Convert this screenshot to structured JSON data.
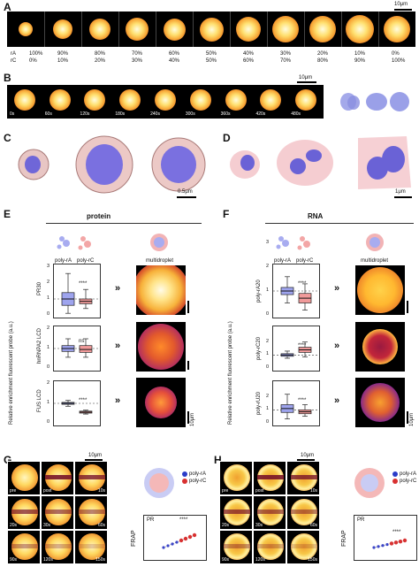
{
  "panels": {
    "A": "A",
    "B": "B",
    "C": "C",
    "D": "D",
    "E": "E",
    "F": "F",
    "G": "G",
    "H": "H"
  },
  "panelA": {
    "scale": "10μm",
    "row_labels": [
      "rA",
      "rC"
    ],
    "rA": [
      "100%",
      "90%",
      "80%",
      "70%",
      "60%",
      "50%",
      "40%",
      "30%",
      "20%",
      "10%",
      "0%"
    ],
    "rC": [
      "0%",
      "10%",
      "20%",
      "30%",
      "40%",
      "50%",
      "60%",
      "70%",
      "80%",
      "90%",
      "100%"
    ]
  },
  "panelB": {
    "scale": "10μm",
    "times": [
      "0s",
      "60s",
      "120s",
      "180s",
      "240s",
      "300s",
      "360s",
      "420s",
      "480s"
    ]
  },
  "panelC": {
    "scale": "0.5μm"
  },
  "panelD": {
    "scale": "1μm"
  },
  "panelE": {
    "group_title": "protein",
    "legend": {
      "a": "poly-rA",
      "c": "poly-rC",
      "multi": "multidroplet"
    },
    "ylabel": "Relative enrichment fluorescent probe (a.u.)",
    "rows": [
      {
        "name": "PR30",
        "sig": "****"
      },
      {
        "name": "hnRNPA2 LCD",
        "sig": "ns"
      },
      {
        "name": "FUS LCD",
        "sig": "****"
      }
    ],
    "scale": "10μm"
  },
  "panelF": {
    "group_title": "RNA",
    "legend": {
      "a": "poly-rA",
      "c": "poly-rC",
      "multi": "multidroplet"
    },
    "ylabel": "Relative enrichment fluorescent probe (a.u.)",
    "rows": [
      {
        "name": "poly-rA20",
        "sig": "****"
      },
      {
        "name": "poly-rC20",
        "sig": "****"
      },
      {
        "name": "poly-rU20",
        "sig": "****"
      }
    ],
    "scale": "10μm"
  },
  "panelG": {
    "scale": "10μm",
    "times": [
      "pre",
      "post",
      "10s",
      "20s",
      "30s",
      "60s",
      "90s",
      "120s",
      "150s"
    ],
    "legend": [
      "poly-rA",
      "poly-rC"
    ],
    "frap_label": "FRAP",
    "inset_label": "PR",
    "sig": "****"
  },
  "panelH": {
    "scale": "10μm",
    "times": [
      "pre",
      "post",
      "10s",
      "20s",
      "30s",
      "60s",
      "90s",
      "120s",
      "150s"
    ],
    "legend": [
      "poly-rA",
      "poly-rC"
    ],
    "frap_label": "FRAP",
    "inset_label": "PR",
    "sig": "****"
  },
  "boxplot_ticks": {
    "top": [
      "0",
      "1",
      "2",
      "3"
    ],
    "mid": [
      "0",
      "1",
      "2"
    ],
    "bot": [
      "0",
      "1",
      "2"
    ]
  },
  "chart_data": [
    {
      "type": "box",
      "panel": "E",
      "row": "PR30",
      "categories": [
        "poly-rA",
        "poly-rC"
      ],
      "medians": [
        1.0,
        0.85
      ],
      "q1": [
        0.6,
        0.7
      ],
      "q3": [
        1.4,
        1.0
      ],
      "whisker_low": [
        0.1,
        0.4
      ],
      "whisker_high": [
        2.6,
        1.6
      ],
      "ylim": [
        0,
        3
      ]
    },
    {
      "type": "box",
      "panel": "E",
      "row": "hnRNPA2 LCD",
      "categories": [
        "poly-rA",
        "poly-rC"
      ],
      "medians": [
        1.0,
        0.95
      ],
      "q1": [
        0.85,
        0.8
      ],
      "q3": [
        1.15,
        1.15
      ],
      "whisker_low": [
        0.55,
        0.55
      ],
      "whisker_high": [
        1.5,
        1.5
      ],
      "ylim": [
        0,
        2
      ]
    },
    {
      "type": "box",
      "panel": "E",
      "row": "FUS LCD",
      "categories": [
        "poly-rA",
        "poly-rC"
      ],
      "medians": [
        1.0,
        0.55
      ],
      "q1": [
        0.95,
        0.5
      ],
      "q3": [
        1.05,
        0.6
      ],
      "whisker_low": [
        0.85,
        0.45
      ],
      "whisker_high": [
        1.15,
        0.65
      ],
      "ylim": [
        0,
        2
      ]
    },
    {
      "type": "box",
      "panel": "F",
      "row": "poly-rA20",
      "categories": [
        "poly-rA",
        "poly-rC"
      ],
      "medians": [
        1.0,
        0.7
      ],
      "q1": [
        0.85,
        0.5
      ],
      "q3": [
        1.15,
        0.9
      ],
      "whisker_low": [
        0.5,
        0.2
      ],
      "whisker_high": [
        1.6,
        1.3
      ],
      "ylim": [
        0,
        2
      ]
    },
    {
      "type": "box",
      "panel": "F",
      "row": "poly-rC20",
      "categories": [
        "poly-rA",
        "poly-rC"
      ],
      "medians": [
        1.0,
        1.4
      ],
      "q1": [
        0.9,
        1.2
      ],
      "q3": [
        1.1,
        1.6
      ],
      "whisker_low": [
        0.75,
        0.85
      ],
      "whisker_high": [
        1.3,
        2.0
      ],
      "ylim": [
        0,
        3
      ]
    },
    {
      "type": "box",
      "panel": "F",
      "row": "poly-rU20",
      "categories": [
        "poly-rA",
        "poly-rC"
      ],
      "medians": [
        1.1,
        0.85
      ],
      "q1": [
        0.8,
        0.7
      ],
      "q3": [
        1.4,
        1.0
      ],
      "whisker_low": [
        0.3,
        0.5
      ],
      "whisker_high": [
        2.2,
        1.4
      ],
      "ylim": [
        0,
        3
      ]
    }
  ]
}
